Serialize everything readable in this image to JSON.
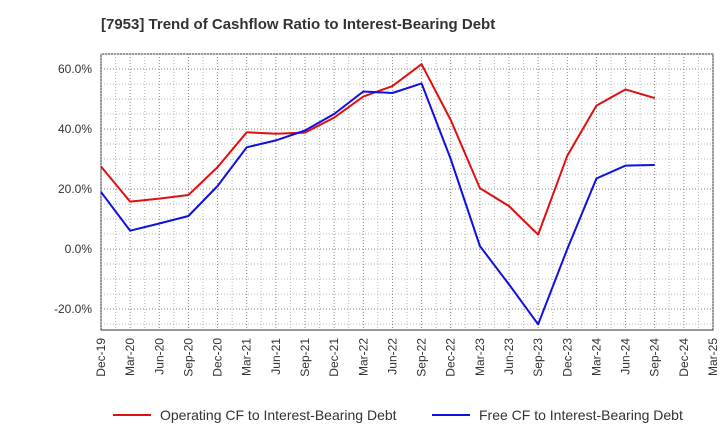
{
  "chart_data": {
    "type": "line",
    "title": "[7953]  Trend of Cashflow Ratio to Interest-Bearing Debt",
    "xlabel": "",
    "ylabel": "",
    "categories": [
      "Dec-19",
      "Mar-20",
      "Jun-20",
      "Sep-20",
      "Dec-20",
      "Mar-21",
      "Jun-21",
      "Sep-21",
      "Dec-21",
      "Mar-22",
      "Jun-22",
      "Sep-22",
      "Dec-22",
      "Mar-23",
      "Jun-23",
      "Sep-23",
      "Dec-23",
      "Mar-24",
      "Jun-24",
      "Sep-24",
      "Dec-24",
      "Mar-25"
    ],
    "ylim": [
      -27,
      65
    ],
    "yticks": [
      -20,
      0,
      20,
      40,
      60
    ],
    "ytick_labels": [
      "-20.0%",
      "0.0%",
      "20.0%",
      "40.0%",
      "60.0%"
    ],
    "grid": true,
    "legend_position": "bottom",
    "series": [
      {
        "name": "Operating CF to Interest-Bearing Debt",
        "color": "#e01010",
        "values": [
          27.5,
          15.8,
          16.8,
          18.0,
          27.3,
          38.9,
          38.4,
          38.8,
          43.8,
          50.8,
          54.3,
          61.6,
          43.0,
          20.3,
          14.3,
          4.8,
          31.1,
          47.8,
          53.2,
          50.3,
          null,
          null
        ]
      },
      {
        "name": "Free CF to Interest-Bearing Debt",
        "color": "#1010e0",
        "values": [
          19.0,
          6.1,
          8.5,
          11.0,
          21.0,
          33.9,
          36.2,
          39.5,
          45.0,
          52.5,
          52.0,
          55.2,
          30.0,
          1.0,
          -11.8,
          -25.1,
          0.0,
          23.5,
          27.8,
          28.0,
          null,
          null
        ]
      }
    ]
  }
}
